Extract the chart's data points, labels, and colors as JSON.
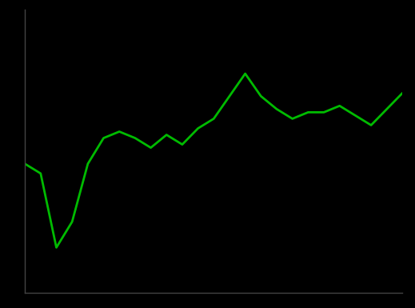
{
  "title": "",
  "background_color": "#000000",
  "line_color": "#00bb00",
  "line_width": 2.0,
  "x_values": [
    0,
    1,
    2,
    3,
    4,
    5,
    6,
    7,
    8,
    9,
    10,
    11,
    12,
    13,
    14,
    15,
    16,
    17,
    18,
    19,
    20,
    21,
    22,
    23,
    24
  ],
  "y_values": [
    100,
    97,
    74,
    82,
    100,
    108,
    110,
    108,
    105,
    109,
    106,
    111,
    114,
    121,
    128,
    121,
    117,
    114,
    116,
    116,
    118,
    115,
    112,
    117,
    122
  ],
  "xlim": [
    0,
    24
  ],
  "ylim": [
    60,
    148
  ],
  "axis_color": "#444444"
}
